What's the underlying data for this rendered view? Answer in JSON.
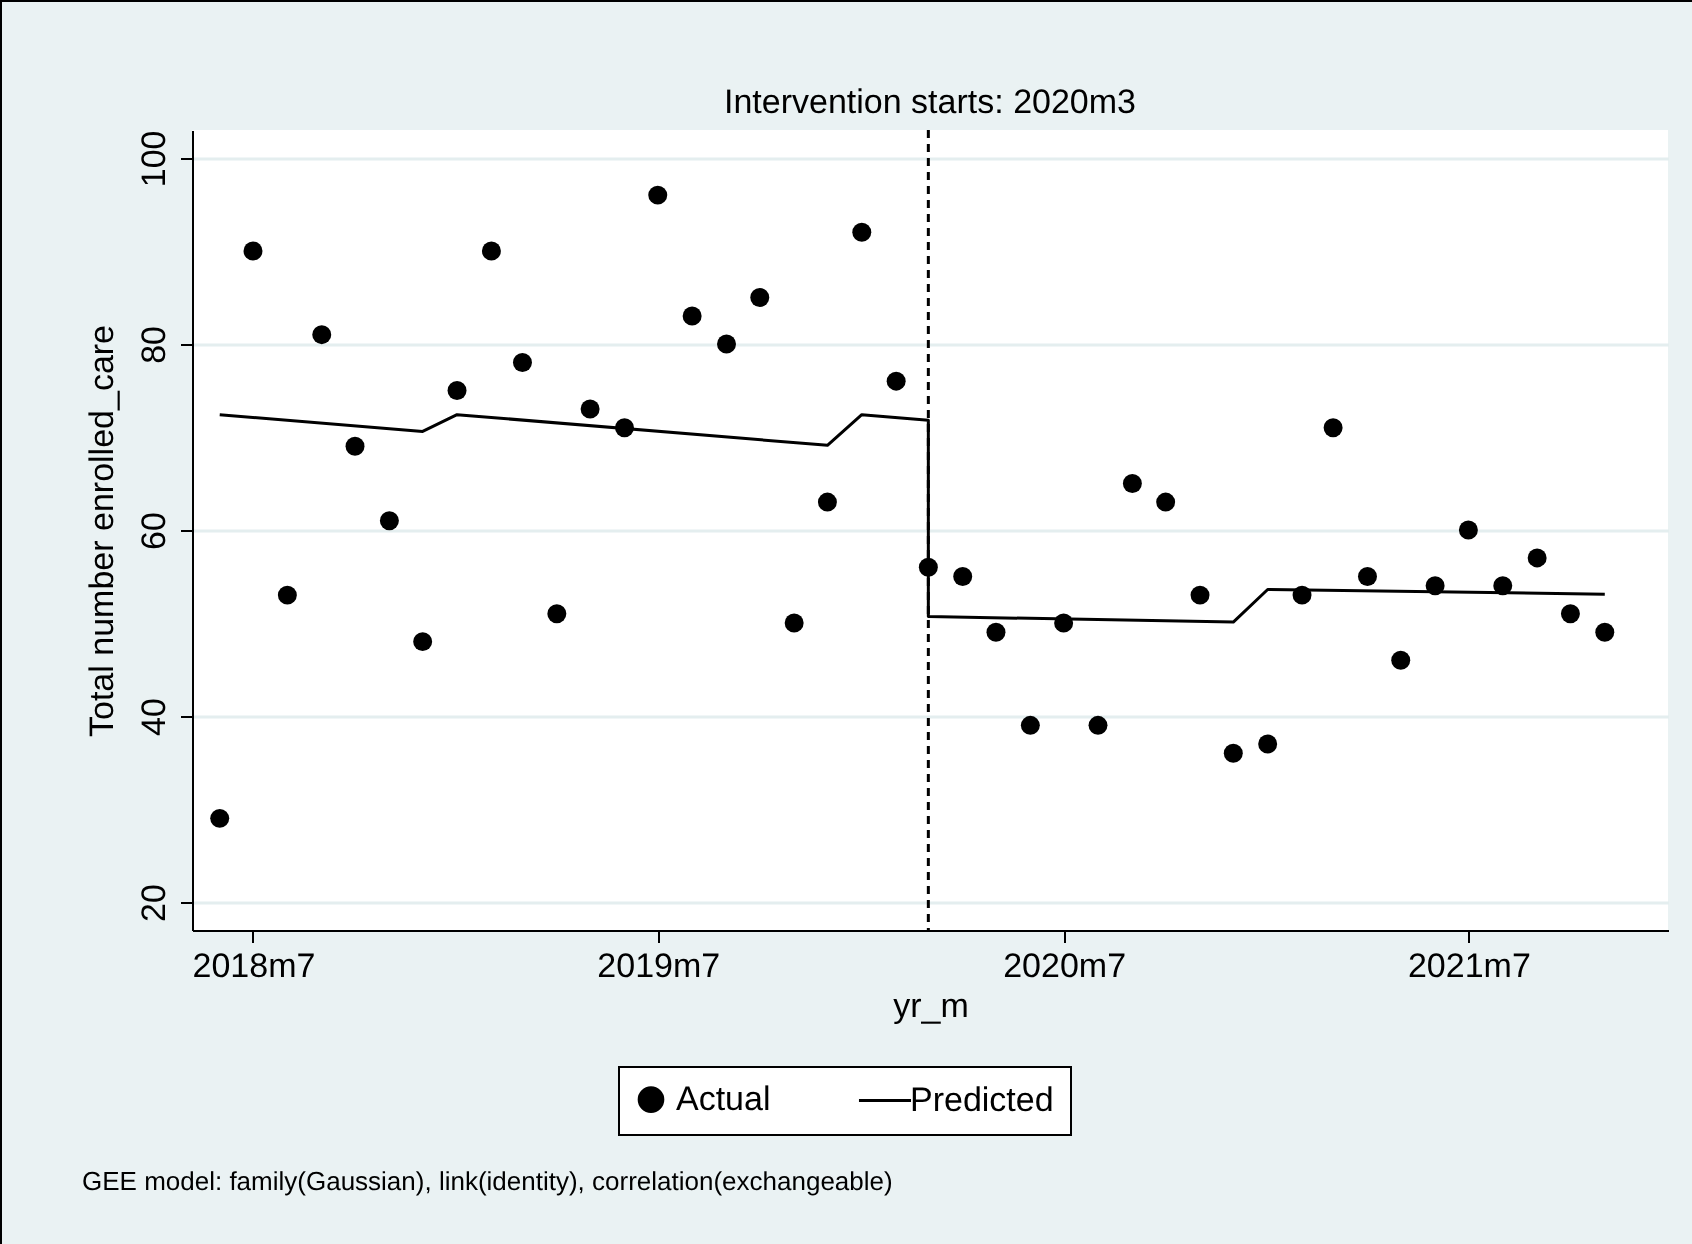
{
  "chart_data": {
    "type": "scatter",
    "title": "Intervention starts: 2020m3",
    "xlabel": "yr_m",
    "ylabel": "Total number enrolled_care",
    "series": [
      {
        "name": "Actual",
        "marker": "circle",
        "color": "#000000",
        "x": [
          "2018-06",
          "2018-07",
          "2018-08",
          "2018-09",
          "2018-10",
          "2018-11",
          "2018-12",
          "2019-01",
          "2019-02",
          "2019-03",
          "2019-04",
          "2019-05",
          "2019-06",
          "2019-07",
          "2019-08",
          "2019-09",
          "2019-10",
          "2019-11",
          "2019-12",
          "2020-01",
          "2020-02",
          "2020-03",
          "2020-04",
          "2020-05",
          "2020-06",
          "2020-07",
          "2020-08",
          "2020-09",
          "2020-10",
          "2020-11",
          "2020-12",
          "2021-01",
          "2021-02",
          "2021-03",
          "2021-04",
          "2021-05",
          "2021-06",
          "2021-07",
          "2021-08",
          "2021-09",
          "2021-10",
          "2021-11"
        ],
        "values": [
          29,
          90,
          53,
          81,
          69,
          61,
          48,
          75,
          90,
          78,
          51,
          73,
          71,
          96,
          83,
          80,
          85,
          50,
          63,
          92,
          76,
          56,
          55,
          49,
          39,
          50,
          39,
          65,
          63,
          53,
          36,
          37,
          53,
          71,
          55,
          46,
          54,
          60,
          54,
          57,
          51,
          49
        ]
      },
      {
        "name": "Predicted",
        "type": "line",
        "marker": "none",
        "color": "#000000",
        "x": [
          "2018-06",
          "2018-12",
          "2019-01",
          "2019-12",
          "2020-01",
          "2020-03",
          "2020-03",
          "2020-12",
          "2021-01",
          "2021-11"
        ],
        "values": [
          72.4,
          70.6,
          72.4,
          69.1,
          72.4,
          71.8,
          50.7,
          50.1,
          53.6,
          53.1
        ]
      }
    ],
    "xlim": [
      "2018-05-07",
      "2021-12-28"
    ],
    "xticks": [
      {
        "value": "2018-07",
        "label": "2018m7"
      },
      {
        "value": "2019-07",
        "label": "2019m7"
      },
      {
        "value": "2020-07",
        "label": "2020m7"
      },
      {
        "value": "2021-07",
        "label": "2021m7"
      }
    ],
    "ylim": [
      17,
      103
    ],
    "yticks": [
      20,
      40,
      60,
      80,
      100
    ],
    "grid": "y",
    "legend": "bottom",
    "ref_lines": [
      {
        "axis": "x",
        "value": "2020-03",
        "color": "#000000",
        "line_style": "dashed"
      }
    ],
    "annotations": [
      "GEE model: family(Gaussian), link(identity), correlation(exchangeable)"
    ]
  }
}
